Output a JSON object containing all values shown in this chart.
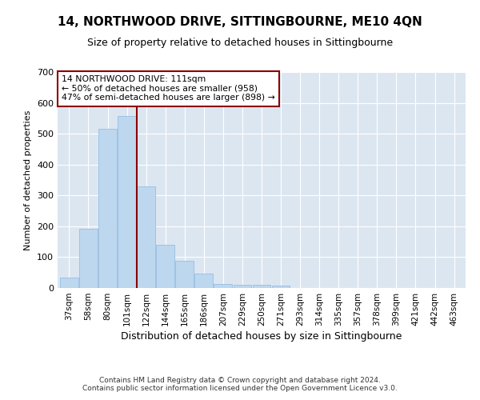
{
  "title": "14, NORTHWOOD DRIVE, SITTINGBOURNE, ME10 4QN",
  "subtitle": "Size of property relative to detached houses in Sittingbourne",
  "xlabel": "Distribution of detached houses by size in Sittingbourne",
  "ylabel": "Number of detached properties",
  "categories": [
    "37sqm",
    "58sqm",
    "80sqm",
    "101sqm",
    "122sqm",
    "144sqm",
    "165sqm",
    "186sqm",
    "207sqm",
    "229sqm",
    "250sqm",
    "271sqm",
    "293sqm",
    "314sqm",
    "335sqm",
    "357sqm",
    "378sqm",
    "399sqm",
    "421sqm",
    "442sqm",
    "463sqm"
  ],
  "bar_heights": [
    35,
    192,
    515,
    558,
    328,
    140,
    87,
    46,
    13,
    10,
    10,
    8,
    0,
    0,
    0,
    0,
    0,
    0,
    0,
    0,
    0
  ],
  "annotation_text_line1": "14 NORTHWOOD DRIVE: 111sqm",
  "annotation_text_line2": "← 50% of detached houses are smaller (958)",
  "annotation_text_line3": "47% of semi-detached houses are larger (898) →",
  "vline_color": "#8B0000",
  "bar_color": "#BDD7EE",
  "bar_edge_color": "#9DC3E6",
  "bg_color": "#DCE6F1",
  "footer_line1": "Contains HM Land Registry data © Crown copyright and database right 2024.",
  "footer_line2": "Contains public sector information licensed under the Open Government Licence v3.0.",
  "ylim": [
    0,
    700
  ],
  "yticks": [
    0,
    100,
    200,
    300,
    400,
    500,
    600,
    700
  ],
  "title_fontsize": 11,
  "subtitle_fontsize": 9,
  "ylabel_fontsize": 8,
  "xlabel_fontsize": 9
}
